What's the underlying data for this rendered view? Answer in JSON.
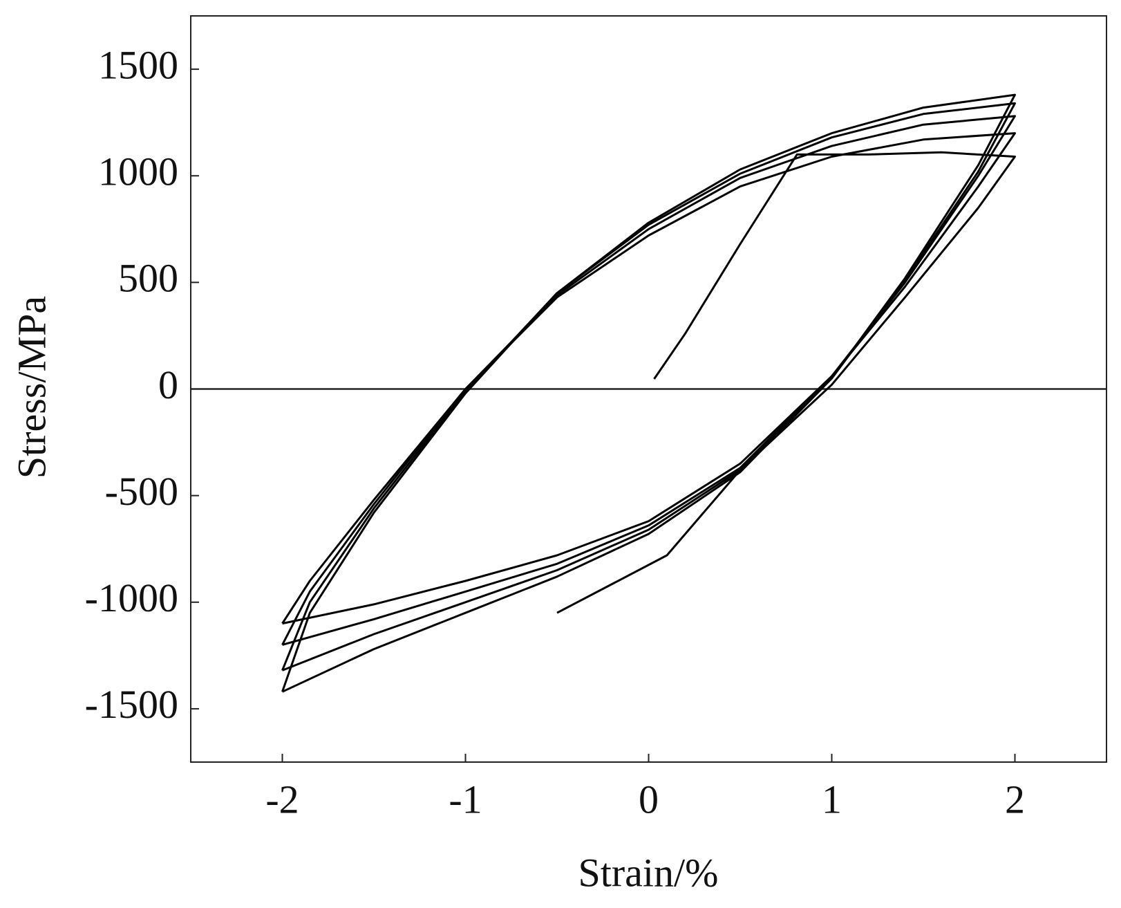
{
  "chart_data": {
    "type": "line",
    "xlabel": "Strain/%",
    "ylabel": "Stress/MPa",
    "xlim": [
      -2.5,
      2.5
    ],
    "xticks": [
      -2,
      -1,
      0,
      1,
      2
    ],
    "ylim": [
      -1750,
      1750
    ],
    "yticks": [
      -1500,
      -1000,
      -500,
      0,
      500,
      1000,
      1500
    ],
    "hline": 0,
    "color": "#000000",
    "series": [
      {
        "x": [
          0.03,
          0.2,
          0.5,
          0.81,
          1.2,
          1.6,
          2,
          1.8,
          1.4,
          1,
          0.5,
          0.1,
          -0.5
        ],
        "y": [
          47,
          260,
          680,
          1100,
          1100,
          1110,
          1090,
          850,
          430,
          20,
          -380,
          -780,
          -1050
        ]
      },
      {
        "x": [
          -2,
          -1.85,
          -1.5,
          -1,
          -0.5,
          0,
          0.5,
          1,
          1.5,
          2,
          1.8,
          1.4,
          1,
          0.5,
          0,
          -0.5,
          -1,
          -1.5,
          -2
        ],
        "y": [
          -1100,
          -900,
          -520,
          0,
          430,
          720,
          950,
          1090,
          1170,
          1200,
          950,
          480,
          60,
          -350,
          -620,
          -780,
          -900,
          -1010,
          -1100
        ]
      },
      {
        "x": [
          -2,
          -1.85,
          -1.5,
          -1,
          -0.5,
          0,
          0.5,
          1,
          1.5,
          2,
          1.8,
          1.4,
          1,
          0.5,
          0,
          -0.5,
          -1,
          -1.5,
          -2
        ],
        "y": [
          -1200,
          -950,
          -540,
          0,
          440,
          750,
          990,
          1140,
          1240,
          1280,
          1000,
          500,
          60,
          -370,
          -640,
          -820,
          -950,
          -1080,
          -1200
        ]
      },
      {
        "x": [
          -2,
          -1.85,
          -1.5,
          -1,
          -0.5,
          0,
          0.5,
          1,
          1.5,
          2,
          1.8,
          1.4,
          1,
          0.5,
          0,
          -0.5,
          -1,
          -1.5,
          -2
        ],
        "y": [
          -1320,
          -1000,
          -560,
          -10,
          450,
          770,
          1010,
          1180,
          1290,
          1340,
          1020,
          510,
          50,
          -380,
          -660,
          -850,
          -1000,
          -1150,
          -1320
        ]
      },
      {
        "x": [
          -2,
          -1.85,
          -1.5,
          -1,
          -0.5,
          0,
          0.5,
          1,
          1.5,
          2,
          1.8,
          1.4,
          1,
          0.5,
          0,
          -0.5,
          -1,
          -1.5,
          -2
        ],
        "y": [
          -1420,
          -1050,
          -580,
          -20,
          450,
          780,
          1030,
          1200,
          1320,
          1380,
          1050,
          520,
          50,
          -390,
          -680,
          -880,
          -1050,
          -1220,
          -1420
        ]
      }
    ]
  }
}
